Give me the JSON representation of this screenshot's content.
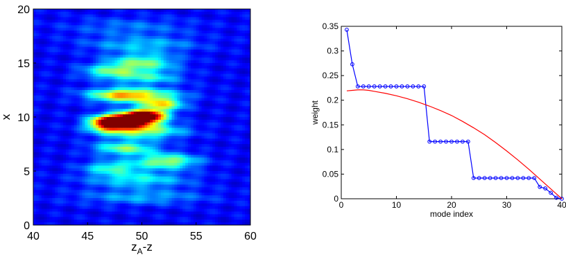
{
  "chart_data": [
    {
      "type": "heatmap",
      "title": "",
      "xlabel_main": "z",
      "xlabel_sub": "A",
      "xlabel_tail": "-z",
      "ylabel": "x",
      "xlim": [
        40,
        60
      ],
      "ylim": [
        0,
        20
      ],
      "x_ticks": [
        40,
        45,
        50,
        55,
        60
      ],
      "y_ticks": [
        0,
        5,
        10,
        15,
        20
      ],
      "colormap": "jet",
      "blobs": [
        {
          "x": 48.5,
          "y": 9.6,
          "sx": 1.6,
          "sy": 0.45,
          "v": 1.0
        },
        {
          "x": 50.3,
          "y": 10.1,
          "sx": 1.3,
          "sy": 0.4,
          "v": 0.95
        },
        {
          "x": 46.8,
          "y": 9.4,
          "sx": 1.2,
          "sy": 0.5,
          "v": 0.55
        },
        {
          "x": 51.8,
          "y": 11.2,
          "sx": 1.4,
          "sy": 0.45,
          "v": 0.5
        },
        {
          "x": 50.0,
          "y": 8.7,
          "sx": 2.6,
          "sy": 0.5,
          "v": 0.42
        },
        {
          "x": 48.2,
          "y": 11.9,
          "sx": 2.0,
          "sy": 0.45,
          "v": 0.38
        },
        {
          "x": 49.5,
          "y": 12.2,
          "sx": 3.0,
          "sy": 0.4,
          "v": 0.3
        },
        {
          "x": 50.0,
          "y": 15.0,
          "sx": 2.2,
          "sy": 0.6,
          "v": 0.38
        },
        {
          "x": 47.0,
          "y": 14.2,
          "sx": 1.8,
          "sy": 0.45,
          "v": 0.3
        },
        {
          "x": 50.5,
          "y": 13.6,
          "sx": 2.2,
          "sy": 0.4,
          "v": 0.26
        },
        {
          "x": 48.5,
          "y": 7.1,
          "sx": 2.0,
          "sy": 0.45,
          "v": 0.38
        },
        {
          "x": 52.3,
          "y": 5.9,
          "sx": 2.0,
          "sy": 0.5,
          "v": 0.42
        },
        {
          "x": 47.3,
          "y": 5.3,
          "sx": 1.8,
          "sy": 0.45,
          "v": 0.3
        },
        {
          "x": 49.7,
          "y": 4.2,
          "sx": 3.2,
          "sy": 0.5,
          "v": 0.26
        },
        {
          "x": 50.0,
          "y": 2.6,
          "sx": 4.0,
          "sy": 0.5,
          "v": 0.18
        },
        {
          "x": 50.0,
          "y": 16.7,
          "sx": 3.5,
          "sy": 0.5,
          "v": 0.2
        },
        {
          "x": 49.0,
          "y": 18.3,
          "sx": 4.0,
          "sy": 0.6,
          "v": 0.12
        }
      ],
      "noise_amplitude": 0.1,
      "base_level": 0.07
    },
    {
      "type": "line",
      "title": "",
      "xlabel": "mode index",
      "ylabel": "weight",
      "xlim": [
        0,
        40
      ],
      "ylim": [
        0,
        0.35
      ],
      "x_ticks": [
        0,
        10,
        20,
        30,
        40
      ],
      "y_ticks": [
        "0",
        "0.05",
        "0.1",
        "0.15",
        "0.2",
        "0.25",
        "0.3",
        "0.35"
      ],
      "series": [
        {
          "color": "#0000ff",
          "marker": "circle",
          "x": [
            1,
            2,
            3,
            4,
            5,
            6,
            7,
            8,
            9,
            10,
            11,
            12,
            13,
            14,
            15,
            16,
            17,
            18,
            19,
            20,
            21,
            22,
            23,
            24,
            25,
            26,
            27,
            28,
            29,
            30,
            31,
            32,
            33,
            34,
            35,
            36,
            37,
            38,
            39,
            40
          ],
          "y": [
            0.343,
            0.273,
            0.228,
            0.228,
            0.228,
            0.228,
            0.228,
            0.228,
            0.228,
            0.228,
            0.228,
            0.228,
            0.228,
            0.228,
            0.228,
            0.116,
            0.116,
            0.116,
            0.116,
            0.116,
            0.116,
            0.116,
            0.116,
            0.042,
            0.042,
            0.042,
            0.042,
            0.042,
            0.042,
            0.042,
            0.042,
            0.042,
            0.042,
            0.042,
            0.042,
            0.024,
            0.021,
            0.012,
            0.002,
            0.0
          ]
        },
        {
          "color": "#ff0000",
          "marker": "none",
          "x": [
            1,
            2,
            3,
            4,
            5,
            6,
            8,
            10,
            12,
            14,
            16,
            18,
            20,
            22,
            24,
            26,
            28,
            30,
            32,
            34,
            36,
            37,
            38,
            39,
            40
          ],
          "y": [
            0.219,
            0.22,
            0.221,
            0.221,
            0.22,
            0.218,
            0.214,
            0.209,
            0.203,
            0.196,
            0.188,
            0.179,
            0.169,
            0.157,
            0.144,
            0.13,
            0.114,
            0.097,
            0.079,
            0.06,
            0.04,
            0.03,
            0.02,
            0.01,
            0.0
          ]
        }
      ]
    }
  ]
}
